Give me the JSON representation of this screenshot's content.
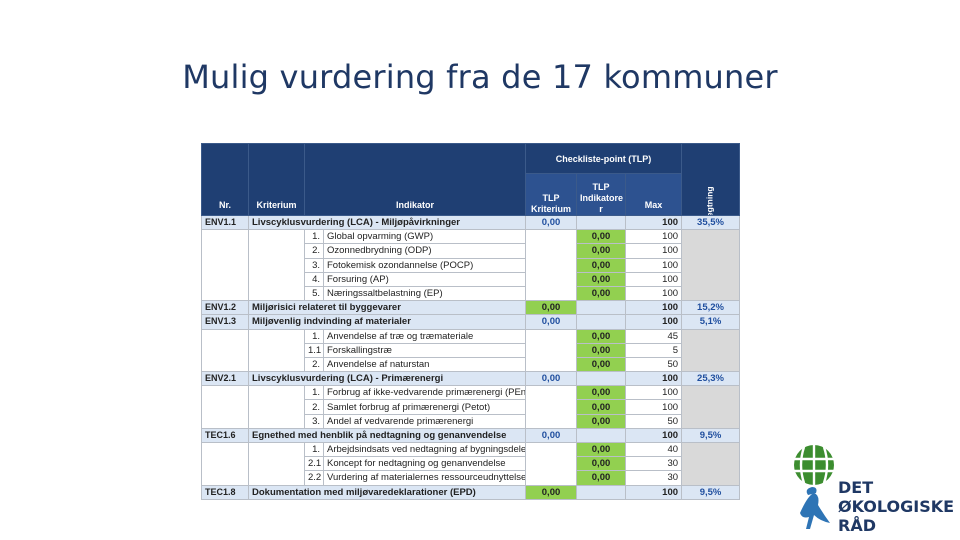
{
  "title": "Mulig vurdering fra de 17 kommuner",
  "colors": {
    "header": "#1f3f73",
    "green": "#92d050",
    "light_blue": "#dbe6f4",
    "grey": "#d9d9d9",
    "title": "#1f3864",
    "logo_green": "#3c8d2f",
    "logo_blue": "#2e74b5"
  },
  "table": {
    "headers": {
      "nr": "Nr.",
      "kriterium": "Kriterium",
      "indikator": "Indikator",
      "group": "Checkliste-point (TLP)",
      "tlp_kriterium": "TLP Kriterium",
      "tlp_indikator": "TLP Indikatore r",
      "max": "Max",
      "vaegtning": "vægtning"
    },
    "rows": [
      {
        "type": "main",
        "nr": "ENV1.1",
        "kriterium": "Livscyklusvurdering (LCA) - Miljøpåvirkninger",
        "tlp_kriterium": "0,00",
        "max": "100",
        "vaegtning": "35,5%",
        "krit_color": "blue"
      },
      {
        "type": "sub",
        "num": "1.",
        "text": "Global opvarming (GWP)",
        "tlp": "0,00",
        "max": "100"
      },
      {
        "type": "sub",
        "num": "2.",
        "text": "Ozonnedbrydning (ODP)",
        "tlp": "0,00",
        "max": "100"
      },
      {
        "type": "sub",
        "num": "3.",
        "text": "Fotokemisk ozondannelse (POCP)",
        "tlp": "0,00",
        "max": "100"
      },
      {
        "type": "sub",
        "num": "4.",
        "text": "Forsuring (AP)",
        "tlp": "0,00",
        "max": "100"
      },
      {
        "type": "sub",
        "num": "5.",
        "text": "Næringssaltbelastning (EP)",
        "tlp": "0,00",
        "max": "100"
      },
      {
        "type": "main",
        "nr": "ENV1.2",
        "kriterium": "Miljørisici relateret til byggevarer",
        "tlp_kriterium": "0,00",
        "max": "100",
        "vaegtning": "15,2%",
        "krit_color": "green"
      },
      {
        "type": "main",
        "nr": "ENV1.3",
        "kriterium": "Miljøvenlig indvinding af materialer",
        "tlp_kriterium": "0,00",
        "max": "100",
        "vaegtning": "5,1%",
        "krit_color": "blue"
      },
      {
        "type": "sub",
        "num": "1.",
        "text": "Anvendelse af træ og træmateriale",
        "tlp": "0,00",
        "max": "45"
      },
      {
        "type": "sub",
        "num": "1.1",
        "text": "Forskallingstræ",
        "tlp": "0,00",
        "max": "5"
      },
      {
        "type": "sub",
        "num": "2.",
        "text": "Anvendelse af naturstan",
        "tlp": "0,00",
        "max": "50"
      },
      {
        "type": "main",
        "nr": "ENV2.1",
        "kriterium": "Livscyklusvurdering (LCA) - Primærenergi",
        "tlp_kriterium": "0,00",
        "max": "100",
        "vaegtning": "25,3%",
        "krit_color": "blue"
      },
      {
        "type": "sub",
        "num": "1.",
        "text": "Forbrug af ikke-vedvarende primærenergi (PEnr)",
        "tlp": "0,00",
        "max": "100"
      },
      {
        "type": "sub",
        "num": "2.",
        "text": "Samlet forbrug af primærenergi (Petot)",
        "tlp": "0,00",
        "max": "100"
      },
      {
        "type": "sub",
        "num": "3.",
        "text": "Andel af vedvarende primærenergi",
        "tlp": "0,00",
        "max": "50"
      },
      {
        "type": "main",
        "nr": "TEC1.6",
        "kriterium": "Egnethed med henblik på nedtagning og genanvendelse",
        "tlp_kriterium": "0,00",
        "max": "100",
        "vaegtning": "9,5%",
        "krit_color": "blue"
      },
      {
        "type": "sub",
        "num": "1.",
        "text": "Arbejdsindsats ved nedtagning af bygningsdelen",
        "tlp": "0,00",
        "max": "40"
      },
      {
        "type": "sub",
        "num": "2.1",
        "text": "Koncept for nedtagning og genanvendelse",
        "tlp": "0,00",
        "max": "30"
      },
      {
        "type": "sub",
        "num": "2.2",
        "text": "Vurdering af materialernes ressourceudnyttelse",
        "tlp": "0,00",
        "max": "30"
      },
      {
        "type": "main",
        "nr": "TEC1.8",
        "kriterium": "Dokumentation med miljøvaredeklarationer (EPD)",
        "tlp_kriterium": "0,00",
        "max": "100",
        "vaegtning": "9,5%",
        "krit_color": "green"
      }
    ]
  },
  "logo": {
    "line1": "DET",
    "line2": "ØKOLOGISKE",
    "line3": "RÅD",
    "icon": "globe-bird-icon"
  }
}
